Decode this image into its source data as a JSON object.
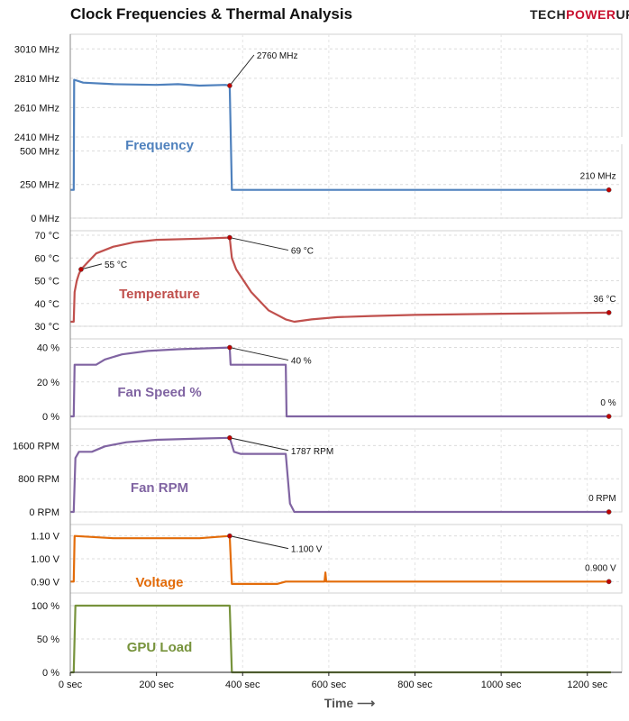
{
  "title": "Clock Frequencies & Thermal  Analysis",
  "logo": {
    "part1": "TECH",
    "part2": "POWER",
    "part3": "UP"
  },
  "chart_data": {
    "type": "line",
    "x_axis": {
      "label": "Time ⟶",
      "ticks": [
        "0 sec",
        "200 sec",
        "400 sec",
        "600 sec",
        "800 sec",
        "1000 sec",
        "1200 sec"
      ],
      "range": [
        0,
        1280
      ],
      "grid": true
    },
    "panels": [
      {
        "name": "Frequency",
        "color": "#4f81bd",
        "y_axis": {
          "type": "broken",
          "upper": {
            "range": [
              2410,
              3110
            ],
            "ticks": [
              "2410 MHz",
              "2610 MHz",
              "2810 MHz",
              "3010 MHz"
            ]
          },
          "lower": {
            "range": [
              0,
              550
            ],
            "ticks": [
              "0 MHz",
              "250 MHz",
              "500 MHz"
            ]
          }
        },
        "series": [
          [
            0,
            210
          ],
          [
            8,
            210
          ],
          [
            9,
            2800
          ],
          [
            30,
            2780
          ],
          [
            100,
            2770
          ],
          [
            200,
            2765
          ],
          [
            250,
            2770
          ],
          [
            300,
            2760
          ],
          [
            360,
            2765
          ],
          [
            370,
            2760
          ],
          [
            375,
            210
          ],
          [
            600,
            210
          ],
          [
            1000,
            210
          ],
          [
            1255,
            210
          ]
        ],
        "annotations": [
          {
            "x": 370,
            "y": 2760,
            "text": "2760 MHz"
          },
          {
            "x": 1250,
            "y": 210,
            "text": "210 MHz"
          }
        ]
      },
      {
        "name": "Temperature",
        "color": "#c0504d",
        "y_axis": {
          "range": [
            30,
            72
          ],
          "ticks": [
            "30 °C",
            "40 °C",
            "50 °C",
            "60 °C",
            "70 °C"
          ]
        },
        "series": [
          [
            0,
            32
          ],
          [
            8,
            32
          ],
          [
            10,
            45
          ],
          [
            15,
            50
          ],
          [
            20,
            53
          ],
          [
            25,
            55
          ],
          [
            40,
            58
          ],
          [
            60,
            62
          ],
          [
            100,
            65
          ],
          [
            150,
            67
          ],
          [
            200,
            68
          ],
          [
            300,
            68.5
          ],
          [
            370,
            69
          ],
          [
            375,
            60
          ],
          [
            385,
            55
          ],
          [
            420,
            45
          ],
          [
            460,
            37
          ],
          [
            500,
            33
          ],
          [
            520,
            32
          ],
          [
            560,
            33
          ],
          [
            620,
            34
          ],
          [
            700,
            34.5
          ],
          [
            800,
            35
          ],
          [
            1000,
            35.5
          ],
          [
            1255,
            36
          ]
        ],
        "annotations": [
          {
            "x": 25,
            "y": 55,
            "text": "55 °C"
          },
          {
            "x": 370,
            "y": 69,
            "text": "69 °C"
          },
          {
            "x": 1250,
            "y": 36,
            "text": "36 °C"
          }
        ]
      },
      {
        "name": "Fan Speed %",
        "color": "#8064a2",
        "y_axis": {
          "range": [
            0,
            45
          ],
          "ticks": [
            "0 %",
            "20 %",
            "40 %"
          ]
        },
        "series": [
          [
            0,
            0
          ],
          [
            8,
            0
          ],
          [
            10,
            30
          ],
          [
            60,
            30
          ],
          [
            80,
            33
          ],
          [
            120,
            36
          ],
          [
            180,
            38
          ],
          [
            250,
            39
          ],
          [
            370,
            40
          ],
          [
            372,
            30
          ],
          [
            500,
            30
          ],
          [
            502,
            0
          ],
          [
            1255,
            0
          ]
        ],
        "annotations": [
          {
            "x": 370,
            "y": 40,
            "text": "40 %"
          },
          {
            "x": 1250,
            "y": 0,
            "text": "0 %"
          }
        ]
      },
      {
        "name": "Fan RPM",
        "color": "#8064a2",
        "y_axis": {
          "range": [
            0,
            2000
          ],
          "ticks": [
            "0 RPM",
            "800 RPM",
            "1600 RPM"
          ]
        },
        "series": [
          [
            0,
            0
          ],
          [
            8,
            0
          ],
          [
            12,
            1300
          ],
          [
            20,
            1450
          ],
          [
            50,
            1450
          ],
          [
            80,
            1580
          ],
          [
            130,
            1680
          ],
          [
            200,
            1740
          ],
          [
            300,
            1770
          ],
          [
            370,
            1787
          ],
          [
            380,
            1450
          ],
          [
            395,
            1400
          ],
          [
            500,
            1400
          ],
          [
            510,
            200
          ],
          [
            520,
            0
          ],
          [
            1255,
            0
          ]
        ],
        "annotations": [
          {
            "x": 370,
            "y": 1787,
            "text": "1787 RPM"
          },
          {
            "x": 1250,
            "y": 0,
            "text": "0 RPM"
          }
        ]
      },
      {
        "name": "Voltage",
        "color": "#e36c0a",
        "y_axis": {
          "range": [
            0.85,
            1.15
          ],
          "ticks": [
            "0.90 V",
            "1.00 V",
            "1.10 V"
          ]
        },
        "series": [
          [
            0,
            0.9
          ],
          [
            8,
            0.9
          ],
          [
            10,
            1.1
          ],
          [
            100,
            1.09
          ],
          [
            200,
            1.09
          ],
          [
            300,
            1.09
          ],
          [
            370,
            1.1
          ],
          [
            375,
            0.89
          ],
          [
            480,
            0.89
          ],
          [
            500,
            0.9
          ],
          [
            590,
            0.9
          ],
          [
            592,
            0.94
          ],
          [
            594,
            0.9
          ],
          [
            1255,
            0.9
          ]
        ],
        "annotations": [
          {
            "x": 370,
            "y": 1.1,
            "text": "1.100 V"
          },
          {
            "x": 1250,
            "y": 0.9,
            "text": "0.900 V"
          }
        ]
      },
      {
        "name": "GPU Load",
        "color": "#77933c",
        "y_axis": {
          "range": [
            0,
            100
          ],
          "ticks": [
            "0 %",
            "50 %",
            "100 %"
          ]
        },
        "series": [
          [
            0,
            0
          ],
          [
            8,
            0
          ],
          [
            12,
            100
          ],
          [
            370,
            100
          ],
          [
            375,
            0
          ],
          [
            1255,
            0
          ]
        ],
        "annotations": []
      }
    ]
  }
}
